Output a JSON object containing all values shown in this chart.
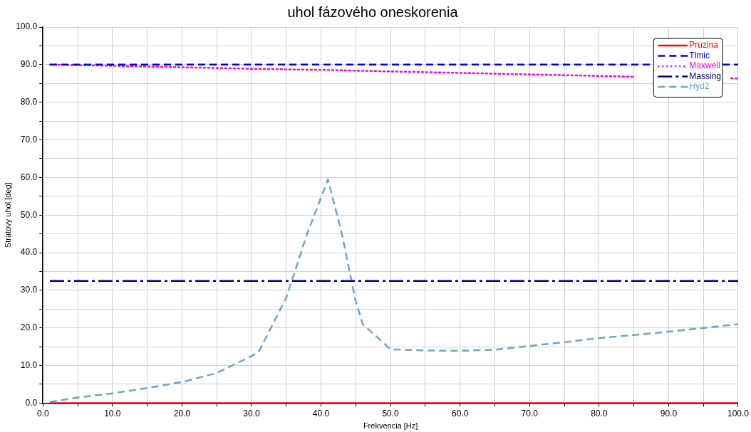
{
  "chart_data": {
    "type": "line",
    "title": "uhol fázového oneskorenia",
    "xlabel": "Frekvencia [Hz]",
    "ylabel": "Stratovy uhol [deg]",
    "x": [
      1,
      100
    ],
    "series": [
      {
        "name": "Pruzina",
        "color": "#ff0000",
        "line_style": "solid",
        "values": [
          0,
          0
        ]
      },
      {
        "name": "Tlmic",
        "color": "#0000cc",
        "line_style": "dashed",
        "values": [
          90,
          90
        ]
      },
      {
        "name": "Maxwell",
        "color": "#ff00cc",
        "line_style": "dotted",
        "x": [
          1,
          10,
          20,
          30,
          40,
          50,
          60,
          70,
          80,
          85,
          90,
          99,
          100
        ],
        "values": [
          90,
          89.7,
          89.3,
          88.9,
          88.6,
          88.2,
          87.8,
          87.4,
          87,
          86.8,
          null,
          86.4,
          86.3
        ]
      },
      {
        "name": "Massing",
        "color": "#000080",
        "line_style": "dashdot",
        "values": [
          32.5,
          32.5
        ]
      },
      {
        "name": "Hyd2",
        "color": "#6aa6c8",
        "line_style": "dashed",
        "x": [
          1,
          5,
          10,
          15,
          20,
          25,
          30,
          31,
          35,
          38,
          41,
          43,
          45,
          46,
          50,
          55,
          60,
          65,
          70,
          75,
          80,
          85,
          90,
          95,
          100
        ],
        "values": [
          0.3,
          1.5,
          2.6,
          4,
          5.6,
          8,
          12.5,
          13.5,
          28,
          45,
          59.5,
          45,
          27,
          21,
          14.3,
          14,
          13.9,
          14.2,
          15.2,
          16.2,
          17.3,
          18.1,
          19,
          20,
          21
        ]
      }
    ],
    "xlim": [
      0,
      100
    ],
    "xticks": [
      {
        "value": 0,
        "label": "0.0"
      },
      {
        "value": 5,
        "label": null
      },
      {
        "value": 10,
        "label": "10.0"
      },
      {
        "value": 15,
        "label": null
      },
      {
        "value": 20,
        "label": "20.0"
      },
      {
        "value": 25,
        "label": null
      },
      {
        "value": 30,
        "label": "30.0"
      },
      {
        "value": 35,
        "label": null
      },
      {
        "value": 40,
        "label": "40.0"
      },
      {
        "value": 45,
        "label": null
      },
      {
        "value": 50,
        "label": "50.0"
      },
      {
        "value": 55,
        "label": null
      },
      {
        "value": 60,
        "label": "60.0"
      },
      {
        "value": 65,
        "label": null
      },
      {
        "value": 70,
        "label": "70.0"
      },
      {
        "value": 75,
        "label": null
      },
      {
        "value": 80,
        "label": "80.0"
      },
      {
        "value": 85,
        "label": null
      },
      {
        "value": 90,
        "label": "90.0"
      },
      {
        "value": 95,
        "label": null
      },
      {
        "value": 100,
        "label": "100.0"
      }
    ],
    "ylim": [
      0,
      100
    ],
    "yticks": [
      {
        "value": 0,
        "label": "0.0"
      },
      {
        "value": 5,
        "label": null
      },
      {
        "value": 10,
        "label": "10.0"
      },
      {
        "value": 15,
        "label": null
      },
      {
        "value": 20,
        "label": "20.0"
      },
      {
        "value": 25,
        "label": null
      },
      {
        "value": 30,
        "label": "30.0"
      },
      {
        "value": 35,
        "label": null
      },
      {
        "value": 40,
        "label": "40.0"
      },
      {
        "value": 45,
        "label": null
      },
      {
        "value": 50,
        "label": "50.0"
      },
      {
        "value": 55,
        "label": null
      },
      {
        "value": 60,
        "label": "60.0"
      },
      {
        "value": 65,
        "label": null
      },
      {
        "value": 70,
        "label": "70.0"
      },
      {
        "value": 75,
        "label": null
      },
      {
        "value": 80,
        "label": "80.0"
      },
      {
        "value": 85,
        "label": null
      },
      {
        "value": 90,
        "label": "90.0"
      },
      {
        "value": 95,
        "label": null
      },
      {
        "value": 100,
        "label": "100.0"
      }
    ],
    "grid": true,
    "legend": "top right",
    "marker": "none"
  }
}
